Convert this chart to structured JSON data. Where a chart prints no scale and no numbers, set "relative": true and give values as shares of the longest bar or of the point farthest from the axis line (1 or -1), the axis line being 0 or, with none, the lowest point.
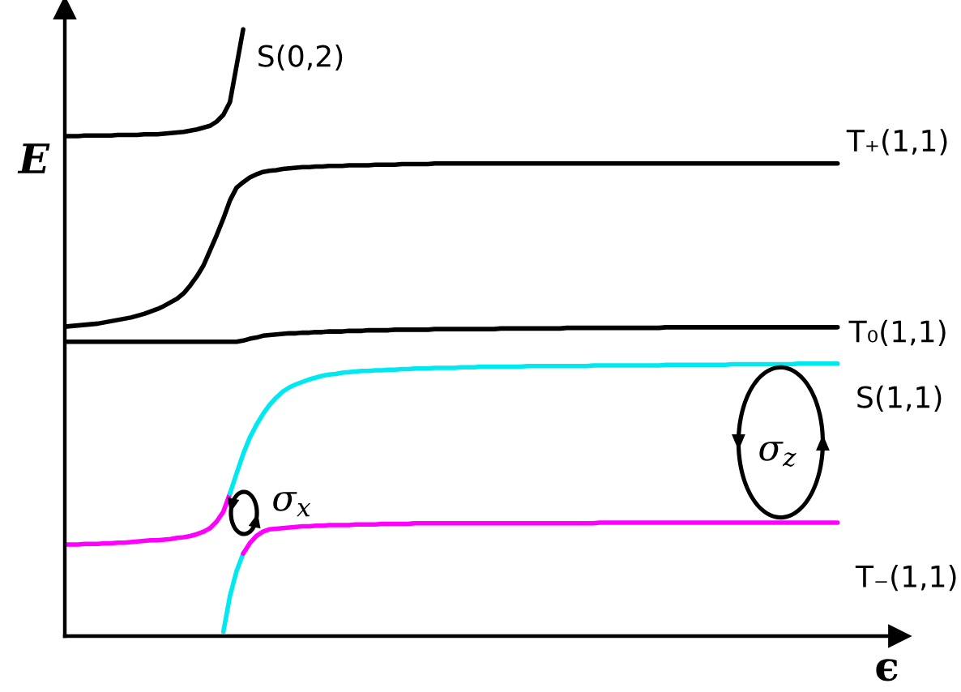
{
  "chart_data": {
    "type": "line",
    "xlabel": "ϵ",
    "ylabel": "E",
    "relative": true,
    "categories": [
      null,
      null,
      null,
      null,
      null,
      null,
      null,
      null,
      null,
      null,
      null,
      null,
      null,
      null,
      null,
      null,
      null,
      null,
      null,
      null,
      null,
      null,
      null,
      null,
      null,
      null,
      null,
      null,
      null,
      null,
      null,
      null,
      null,
      null,
      null,
      null,
      null,
      null,
      null,
      null,
      null,
      null,
      null,
      null,
      null,
      null,
      null,
      null,
      null,
      null,
      null,
      null,
      null,
      null,
      null,
      null,
      null,
      null,
      null,
      null,
      null,
      null,
      null,
      null,
      null,
      null,
      null,
      null,
      null,
      null,
      null,
      null,
      null,
      null,
      null,
      null,
      null,
      null,
      null,
      null,
      null,
      null,
      null,
      null,
      null,
      null,
      null,
      null,
      null,
      null,
      null,
      null,
      null,
      null,
      null,
      null,
      null,
      null,
      null,
      null,
      null,
      null,
      null,
      null,
      null,
      null,
      null,
      null,
      null,
      null,
      null,
      null,
      null,
      null,
      null,
      null,
      null,
      null
    ],
    "series": [
      {
        "name": "S(0,2)",
        "color": "#000000",
        "values": [
          0.824,
          0.824,
          0.824,
          0.825,
          0.825,
          0.825,
          0.825,
          0.825,
          0.826,
          0.826,
          0.826,
          0.826,
          0.827,
          0.827,
          0.827,
          0.828,
          0.829,
          0.83,
          0.831,
          0.833,
          0.835,
          0.838,
          0.841,
          0.848,
          0.859,
          0.88,
          0.94,
          1.0,
          null,
          null,
          null,
          null,
          null,
          null,
          null,
          null,
          null,
          null,
          null,
          null,
          null,
          null,
          null,
          null,
          null,
          null,
          null,
          null,
          null,
          null,
          null,
          null,
          null,
          null,
          null,
          null,
          null,
          null,
          null,
          null,
          null,
          null,
          null,
          null,
          null,
          null,
          null,
          null,
          null,
          null,
          null,
          null,
          null,
          null,
          null,
          null,
          null,
          null,
          null,
          null,
          null,
          null,
          null,
          null,
          null,
          null,
          null,
          null,
          null,
          null,
          null,
          null,
          null,
          null,
          null,
          null,
          null,
          null,
          null,
          null,
          null,
          null,
          null,
          null,
          null,
          null,
          null,
          null,
          null,
          null,
          null,
          null,
          null,
          null,
          null,
          null,
          null,
          null
        ]
      },
      {
        "name": "T₊(1,1)",
        "color": "#000000",
        "values": [
          0.51,
          0.511,
          0.512,
          0.513,
          0.514,
          0.515,
          0.517,
          0.519,
          0.521,
          0.523,
          0.525,
          0.528,
          0.531,
          0.535,
          0.539,
          0.544,
          0.55,
          0.556,
          0.565,
          0.578,
          0.593,
          0.611,
          0.636,
          0.661,
          0.688,
          0.718,
          0.739,
          0.748,
          0.756,
          0.761,
          0.765,
          0.767,
          0.768,
          0.77,
          0.771,
          0.772,
          0.773,
          0.773,
          0.774,
          0.774,
          0.775,
          0.775,
          0.775,
          0.776,
          0.776,
          0.776,
          0.776,
          0.777,
          0.777,
          0.777,
          0.777,
          0.778,
          0.778,
          0.778,
          0.778,
          0.778,
          0.779,
          0.779,
          0.779,
          0.779,
          0.779,
          0.779,
          0.779,
          0.779,
          0.779,
          0.779,
          0.779,
          0.779,
          0.779,
          0.779,
          0.779,
          0.779,
          0.779,
          0.779,
          0.779,
          0.779,
          0.779,
          0.779,
          0.779,
          0.779,
          0.779,
          0.779,
          0.779,
          0.779,
          0.779,
          0.779,
          0.779,
          0.779,
          0.779,
          0.779,
          0.779,
          0.779,
          0.779,
          0.779,
          0.779,
          0.779,
          0.779,
          0.779,
          0.779,
          0.779,
          0.779,
          0.779,
          0.779,
          0.779,
          0.779,
          0.779,
          0.779,
          0.779,
          0.779,
          0.779,
          0.779,
          0.779,
          0.779,
          0.779,
          0.779,
          0.779,
          0.779,
          0.779
        ]
      },
      {
        "name": "T₀(1,1)",
        "color": "#000000",
        "values": [
          0.485,
          0.485,
          0.485,
          0.485,
          0.485,
          0.485,
          0.485,
          0.485,
          0.485,
          0.485,
          0.485,
          0.485,
          0.485,
          0.485,
          0.485,
          0.485,
          0.485,
          0.485,
          0.485,
          0.485,
          0.485,
          0.485,
          0.485,
          0.485,
          0.485,
          0.485,
          0.485,
          0.487,
          0.49,
          0.492,
          0.495,
          0.496,
          0.497,
          0.498,
          0.499,
          0.499,
          0.5,
          0.5,
          0.501,
          0.501,
          0.502,
          0.502,
          0.502,
          0.503,
          0.503,
          0.503,
          0.504,
          0.504,
          0.504,
          0.504,
          0.505,
          0.505,
          0.505,
          0.505,
          0.505,
          0.505,
          0.506,
          0.506,
          0.506,
          0.506,
          0.506,
          0.506,
          0.506,
          0.506,
          0.506,
          0.506,
          0.507,
          0.507,
          0.507,
          0.507,
          0.507,
          0.507,
          0.507,
          0.507,
          0.507,
          0.507,
          0.508,
          0.508,
          0.508,
          0.508,
          0.508,
          0.508,
          0.508,
          0.508,
          0.508,
          0.508,
          0.508,
          0.508,
          0.508,
          0.508,
          0.508,
          0.509,
          0.509,
          0.509,
          0.509,
          0.509,
          0.509,
          0.509,
          0.509,
          0.509,
          0.509,
          0.509,
          0.509,
          0.509,
          0.509,
          0.509,
          0.509,
          0.509,
          0.509,
          0.509,
          0.509,
          0.509,
          0.509,
          0.509,
          0.509,
          0.509,
          0.509,
          0.509
        ]
      },
      {
        "color": "#ff00ff",
        "values": [
          0.151,
          0.151,
          0.151,
          0.152,
          0.152,
          0.152,
          0.153,
          0.153,
          0.154,
          0.154,
          0.155,
          0.156,
          0.157,
          0.158,
          0.158,
          0.159,
          0.16,
          0.162,
          0.163,
          0.165,
          0.168,
          0.172,
          0.178,
          0.189,
          0.205,
          0.235,
          null,
          null,
          null,
          null,
          null,
          null,
          null,
          null,
          null,
          null,
          null,
          null,
          null,
          null,
          null,
          null,
          null,
          null,
          null,
          null,
          null,
          null,
          null,
          null,
          null,
          null,
          null,
          null,
          null,
          null,
          null,
          null,
          null,
          null,
          null,
          null,
          null,
          null,
          null,
          null,
          null,
          null,
          null,
          null,
          null,
          null,
          null,
          null,
          null,
          null,
          null,
          null,
          null,
          null,
          null,
          null,
          null,
          null,
          null,
          null,
          null,
          null,
          null,
          null,
          null,
          null,
          null,
          null,
          null,
          null,
          null,
          null,
          null,
          null,
          null,
          null,
          null,
          null,
          null,
          null,
          null,
          null,
          null,
          null,
          null,
          null,
          null,
          null,
          null,
          null,
          null,
          null
        ]
      },
      {
        "name": "S(1,1)",
        "color": "#00e8f0",
        "values": [
          null,
          null,
          null,
          null,
          null,
          null,
          null,
          null,
          null,
          null,
          null,
          null,
          null,
          null,
          null,
          null,
          null,
          null,
          null,
          null,
          null,
          null,
          null,
          null,
          null,
          0.235,
          0.268,
          0.3,
          0.327,
          0.348,
          0.366,
          0.381,
          0.393,
          0.403,
          0.41,
          0.415,
          0.419,
          0.423,
          0.426,
          0.429,
          0.431,
          0.432,
          0.434,
          0.435,
          0.436,
          0.437,
          0.437,
          0.438,
          0.438,
          0.439,
          0.439,
          0.44,
          0.44,
          0.441,
          0.441,
          0.441,
          0.442,
          0.442,
          0.442,
          0.442,
          0.443,
          0.443,
          0.443,
          0.444,
          0.444,
          0.444,
          0.444,
          0.444,
          0.444,
          0.444,
          0.445,
          0.445,
          0.445,
          0.445,
          0.445,
          0.445,
          0.445,
          0.445,
          0.445,
          0.445,
          0.446,
          0.446,
          0.446,
          0.446,
          0.446,
          0.446,
          0.446,
          0.446,
          0.446,
          0.446,
          0.446,
          0.447,
          0.447,
          0.447,
          0.447,
          0.447,
          0.447,
          0.447,
          0.447,
          0.447,
          0.447,
          0.448,
          0.448,
          0.448,
          0.448,
          0.448,
          0.448,
          0.448,
          0.448,
          0.448,
          0.448,
          0.449,
          0.449,
          0.449,
          0.449,
          0.449,
          0.449,
          0.449
        ]
      },
      {
        "color": "#00e8f0",
        "values": [
          null,
          null,
          null,
          null,
          null,
          null,
          null,
          null,
          null,
          null,
          null,
          null,
          null,
          null,
          null,
          null,
          null,
          null,
          null,
          null,
          null,
          null,
          null,
          null,
          0.007,
          0.066,
          0.107,
          0.136,
          null,
          null,
          null,
          null,
          null,
          null,
          null,
          null,
          null,
          null,
          null,
          null,
          null,
          null,
          null,
          null,
          null,
          null,
          null,
          null,
          null,
          null,
          null,
          null,
          null,
          null,
          null,
          null,
          null,
          null,
          null,
          null,
          null,
          null,
          null,
          null,
          null,
          null,
          null,
          null,
          null,
          null,
          null,
          null,
          null,
          null,
          null,
          null,
          null,
          null,
          null,
          null,
          null,
          null,
          null,
          null,
          null,
          null,
          null,
          null,
          null,
          null,
          null,
          null,
          null,
          null,
          null,
          null,
          null,
          null,
          null,
          null,
          null,
          null,
          null,
          null,
          null,
          null,
          null,
          null,
          null,
          null,
          null,
          null,
          null,
          null,
          null,
          null,
          null,
          null
        ]
      },
      {
        "name": "T₋(1,1)",
        "color": "#ff00ff",
        "values": [
          null,
          null,
          null,
          null,
          null,
          null,
          null,
          null,
          null,
          null,
          null,
          null,
          null,
          null,
          null,
          null,
          null,
          null,
          null,
          null,
          null,
          null,
          null,
          null,
          null,
          null,
          null,
          0.136,
          0.153,
          0.165,
          0.172,
          0.176,
          0.177,
          0.178,
          0.179,
          0.18,
          0.181,
          0.181,
          0.182,
          0.182,
          0.183,
          0.183,
          0.183,
          0.183,
          0.184,
          0.184,
          0.184,
          0.184,
          0.185,
          0.185,
          0.185,
          0.185,
          0.185,
          0.186,
          0.186,
          0.186,
          0.186,
          0.186,
          0.186,
          0.186,
          0.186,
          0.186,
          0.186,
          0.186,
          0.186,
          0.186,
          0.186,
          0.186,
          0.186,
          0.186,
          0.186,
          0.186,
          0.186,
          0.186,
          0.186,
          0.186,
          0.186,
          0.186,
          0.186,
          0.186,
          0.186,
          0.187,
          0.187,
          0.187,
          0.187,
          0.187,
          0.187,
          0.187,
          0.187,
          0.187,
          0.187,
          0.187,
          0.187,
          0.187,
          0.187,
          0.187,
          0.187,
          0.187,
          0.187,
          0.187,
          0.187,
          0.187,
          0.187,
          0.187,
          0.187,
          0.187,
          0.187,
          0.187,
          0.187,
          0.187,
          0.187,
          0.187,
          0.187,
          0.187,
          0.187,
          0.187,
          0.187,
          0.187
        ]
      }
    ],
    "annotations": [
      "σ$_{x}$",
      "σ$_{z}$"
    ]
  }
}
